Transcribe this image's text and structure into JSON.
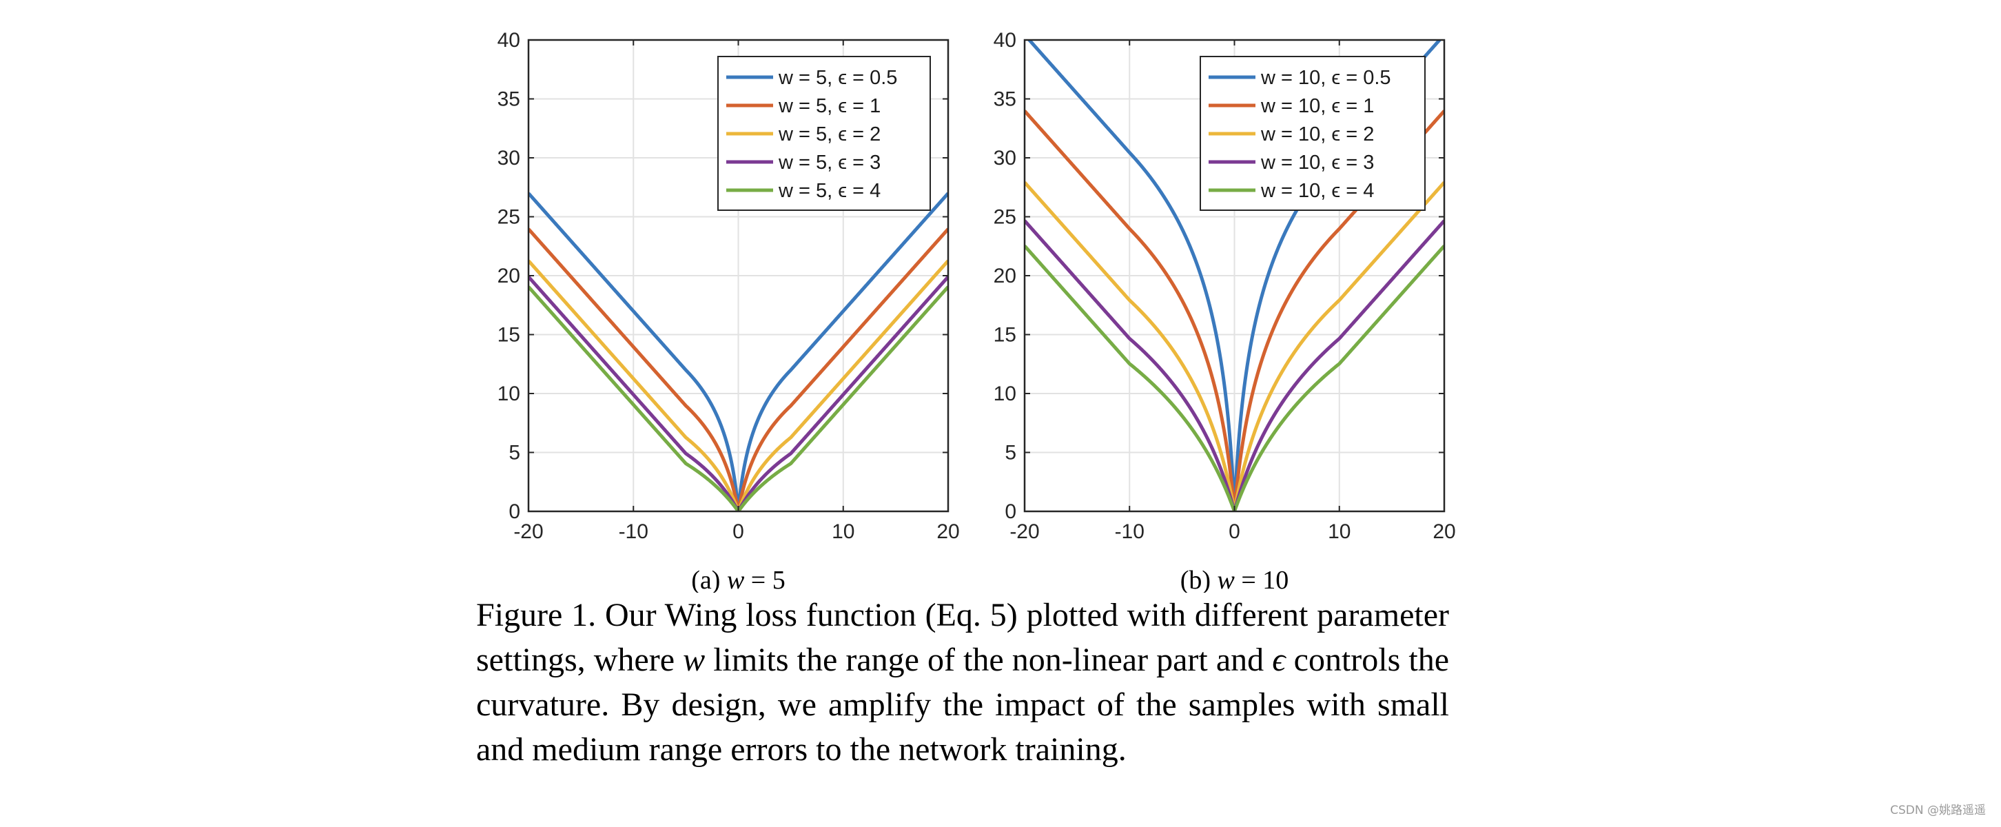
{
  "chart_data": [
    {
      "type": "line",
      "panel_label": "(a)",
      "subcaption_var": "w",
      "subcaption_eq": "= 5",
      "x_range": [
        -20,
        20
      ],
      "ylim": [
        0,
        40
      ],
      "xticks": [
        -20,
        -10,
        0,
        10,
        20
      ],
      "yticks": [
        0,
        5,
        10,
        15,
        20,
        25,
        30,
        35,
        40
      ],
      "grid": true,
      "legend_position": "top-right",
      "w": 5,
      "series": [
        {
          "name": "w = 5, ϵ = 0.5",
          "epsilon": 0.5,
          "color": "#3a79bd"
        },
        {
          "name": "w = 5, ϵ = 1",
          "epsilon": 1,
          "color": "#d4622f"
        },
        {
          "name": "w = 5, ϵ = 2",
          "epsilon": 2,
          "color": "#ecb73b"
        },
        {
          "name": "w = 5, ϵ = 3",
          "epsilon": 3,
          "color": "#7b3a93"
        },
        {
          "name": "w = 5, ϵ = 4",
          "epsilon": 4,
          "color": "#77ac45"
        }
      ]
    },
    {
      "type": "line",
      "panel_label": "(b)",
      "subcaption_var": "w",
      "subcaption_eq": "= 10",
      "x_range": [
        -20,
        20
      ],
      "ylim": [
        0,
        40
      ],
      "xticks": [
        -20,
        -10,
        0,
        10,
        20
      ],
      "yticks": [
        0,
        5,
        10,
        15,
        20,
        25,
        30,
        35,
        40
      ],
      "grid": true,
      "legend_position": "top-right",
      "w": 10,
      "series": [
        {
          "name": "w = 10, ϵ = 0.5",
          "epsilon": 0.5,
          "color": "#3a79bd"
        },
        {
          "name": "w = 10, ϵ = 1",
          "epsilon": 1,
          "color": "#d4622f"
        },
        {
          "name": "w = 10, ϵ = 2",
          "epsilon": 2,
          "color": "#ecb73b"
        },
        {
          "name": "w = 10, ϵ = 3",
          "epsilon": 3,
          "color": "#7b3a93"
        },
        {
          "name": "w = 10, ϵ = 4",
          "epsilon": 4,
          "color": "#77ac45"
        }
      ]
    }
  ],
  "caption": {
    "part1": "Figure 1. Our Wing loss function (Eq. 5) plotted with different parameter settings, where ",
    "var_w": "w",
    "part2": " limits the range of the non-linear part and ",
    "var_eps": "ϵ",
    "part3": " controls the curvature. By design, we amplify the impact of the samples with small and medium range errors to the network training."
  },
  "watermark": "CSDN @姚路遥遥"
}
